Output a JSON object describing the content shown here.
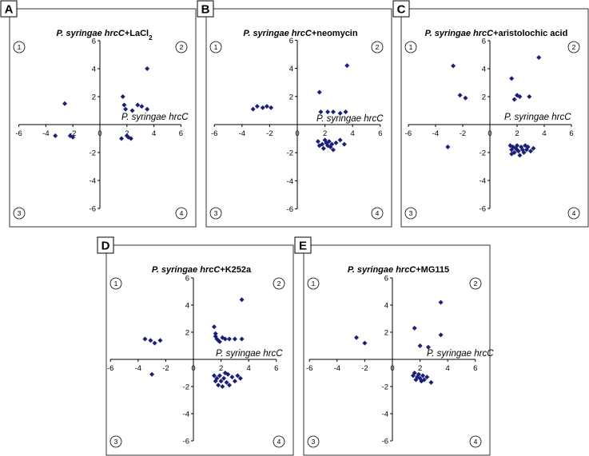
{
  "chart_data": [
    {
      "panel": "A",
      "type": "scatter",
      "title_parts": [
        [
          "P. syringae ",
          ""
        ],
        [
          "hrcC",
          ""
        ],
        [
          "+LaCl",
          ""
        ],
        [
          "2",
          "sub"
        ]
      ],
      "title_style": [
        true,
        true,
        false,
        false
      ],
      "inner_label": "P. syringae hrcC",
      "xlim": [
        -6,
        6
      ],
      "ylim": [
        -6,
        6
      ],
      "xticks": [
        -6,
        -4,
        -2,
        0,
        2,
        4,
        6
      ],
      "yticks": [
        -6,
        -4,
        -2,
        0,
        2,
        4,
        6
      ],
      "quadrants": [
        "1",
        "2",
        "3",
        "4"
      ],
      "points": [
        [
          -2.6,
          1.5
        ],
        [
          -3.3,
          -0.8
        ],
        [
          -2.2,
          -0.8
        ],
        [
          -2.0,
          -0.9
        ],
        [
          1.7,
          2.0
        ],
        [
          1.8,
          1.4
        ],
        [
          1.9,
          1.1
        ],
        [
          2.4,
          1.0
        ],
        [
          2.8,
          1.4
        ],
        [
          3.1,
          1.3
        ],
        [
          3.5,
          1.1
        ],
        [
          3.5,
          4.0
        ],
        [
          1.6,
          -1.0
        ],
        [
          2.0,
          -0.8
        ],
        [
          2.1,
          -0.9
        ],
        [
          2.3,
          -1.0
        ]
      ]
    },
    {
      "panel": "B",
      "type": "scatter",
      "title_parts": [
        [
          "P. syringae ",
          ""
        ],
        [
          "hrcC",
          ""
        ],
        [
          "+neomycin",
          ""
        ]
      ],
      "title_style": [
        true,
        true,
        false
      ],
      "inner_label": "P. syringae hrcC",
      "xlim": [
        -6,
        6
      ],
      "ylim": [
        -6,
        6
      ],
      "xticks": [
        -6,
        -4,
        -2,
        0,
        2,
        4,
        6
      ],
      "yticks": [
        -6,
        -4,
        -2,
        0,
        2,
        4,
        6
      ],
      "quadrants": [
        "1",
        "2",
        "3",
        "4"
      ],
      "points": [
        [
          -3.2,
          1.1
        ],
        [
          -2.9,
          1.3
        ],
        [
          -2.5,
          1.2
        ],
        [
          -2.2,
          1.3
        ],
        [
          -1.9,
          1.2
        ],
        [
          1.6,
          2.3
        ],
        [
          1.7,
          0.9
        ],
        [
          2.2,
          0.9
        ],
        [
          2.6,
          0.9
        ],
        [
          3.1,
          0.8
        ],
        [
          3.5,
          0.9
        ],
        [
          3.6,
          4.2
        ],
        [
          1.5,
          -1.2
        ],
        [
          1.6,
          -1.5
        ],
        [
          1.8,
          -1.4
        ],
        [
          2.0,
          -1.1
        ],
        [
          2.1,
          -1.3
        ],
        [
          2.2,
          -1.5
        ],
        [
          2.3,
          -1.2
        ],
        [
          2.4,
          -1.6
        ],
        [
          2.5,
          -1.4
        ],
        [
          2.6,
          -1.8
        ],
        [
          2.8,
          -1.3
        ],
        [
          3.1,
          -1.1
        ],
        [
          3.4,
          -1.4
        ],
        [
          1.9,
          -1.7
        ]
      ]
    },
    {
      "panel": "C",
      "type": "scatter",
      "title_parts": [
        [
          "P. syringae ",
          ""
        ],
        [
          "hrcC",
          ""
        ],
        [
          "+aristolochic acid",
          ""
        ]
      ],
      "title_style": [
        true,
        true,
        false
      ],
      "inner_label": "P. syringae hrcC",
      "xlim": [
        -6,
        6
      ],
      "ylim": [
        -6,
        6
      ],
      "xticks": [
        -6,
        -4,
        -2,
        0,
        2,
        4,
        6
      ],
      "yticks": [
        -6,
        -4,
        -2,
        0,
        2,
        4,
        6
      ],
      "quadrants": [
        "1",
        "2",
        "3",
        "4"
      ],
      "points": [
        [
          -2.7,
          4.2
        ],
        [
          -2.2,
          2.1
        ],
        [
          -1.8,
          1.9
        ],
        [
          -3.1,
          -1.6
        ],
        [
          1.6,
          3.3
        ],
        [
          1.8,
          1.8
        ],
        [
          2.0,
          2.1
        ],
        [
          2.2,
          2.0
        ],
        [
          2.9,
          2.0
        ],
        [
          3.6,
          4.8
        ],
        [
          1.5,
          -1.5
        ],
        [
          1.6,
          -1.8
        ],
        [
          1.7,
          -1.6
        ],
        [
          1.8,
          -2.0
        ],
        [
          1.9,
          -1.7
        ],
        [
          2.0,
          -1.5
        ],
        [
          2.1,
          -1.9
        ],
        [
          2.2,
          -2.2
        ],
        [
          2.3,
          -1.6
        ],
        [
          2.4,
          -1.8
        ],
        [
          2.5,
          -2.0
        ],
        [
          2.6,
          -1.5
        ],
        [
          2.7,
          -1.8
        ],
        [
          2.8,
          -1.6
        ],
        [
          3.0,
          -1.9
        ],
        [
          3.2,
          -1.7
        ],
        [
          1.6,
          -2.1
        ],
        [
          2.0,
          -1.8
        ]
      ]
    },
    {
      "panel": "D",
      "type": "scatter",
      "title_parts": [
        [
          "P. syringae ",
          ""
        ],
        [
          "hrcC",
          ""
        ],
        [
          "+K252a",
          ""
        ]
      ],
      "title_style": [
        true,
        true,
        false
      ],
      "inner_label": "P. syringae hrcC",
      "xlim": [
        -6,
        6
      ],
      "ylim": [
        -6,
        6
      ],
      "xticks": [
        -6,
        -4,
        -2,
        0,
        2,
        4,
        6
      ],
      "yticks": [
        -6,
        -4,
        -2,
        0,
        2,
        4,
        6
      ],
      "quadrants": [
        "1",
        "2",
        "3",
        "4"
      ],
      "points": [
        [
          -3.5,
          1.5
        ],
        [
          -3.1,
          1.4
        ],
        [
          -2.8,
          1.2
        ],
        [
          -2.4,
          1.4
        ],
        [
          -3.0,
          -1.1
        ],
        [
          1.5,
          2.4
        ],
        [
          1.6,
          1.9
        ],
        [
          1.7,
          1.5
        ],
        [
          1.9,
          1.3
        ],
        [
          2.1,
          1.6
        ],
        [
          2.3,
          1.5
        ],
        [
          2.6,
          1.5
        ],
        [
          3.0,
          1.5
        ],
        [
          3.5,
          1.5
        ],
        [
          3.5,
          4.4
        ],
        [
          1.6,
          1.7
        ],
        [
          1.8,
          1.4
        ],
        [
          1.5,
          -1.2
        ],
        [
          1.6,
          -1.6
        ],
        [
          1.7,
          -1.4
        ],
        [
          1.8,
          -1.9
        ],
        [
          1.9,
          -1.2
        ],
        [
          2.0,
          -1.6
        ],
        [
          2.1,
          -2.0
        ],
        [
          2.2,
          -1.4
        ],
        [
          2.4,
          -1.7
        ],
        [
          2.5,
          -1.1
        ],
        [
          2.6,
          -1.9
        ],
        [
          2.8,
          -1.3
        ],
        [
          3.0,
          -1.6
        ],
        [
          3.2,
          -1.2
        ],
        [
          3.4,
          -1.4
        ],
        [
          2.3,
          -1.0
        ]
      ]
    },
    {
      "panel": "E",
      "type": "scatter",
      "title_parts": [
        [
          "P. syringae ",
          ""
        ],
        [
          "hrcC",
          ""
        ],
        [
          "+MG115",
          ""
        ]
      ],
      "title_style": [
        true,
        true,
        false
      ],
      "inner_label": "P. syringae hrcC",
      "xlim": [
        -6,
        6
      ],
      "ylim": [
        -6,
        6
      ],
      "xticks": [
        -6,
        -4,
        -2,
        0,
        2,
        4,
        6
      ],
      "yticks": [
        -6,
        -4,
        -2,
        0,
        2,
        4,
        6
      ],
      "quadrants": [
        "1",
        "2",
        "3",
        "4"
      ],
      "points": [
        [
          -2.6,
          1.6
        ],
        [
          -2.0,
          1.2
        ],
        [
          1.6,
          2.3
        ],
        [
          2.0,
          1.0
        ],
        [
          2.6,
          0.9
        ],
        [
          3.5,
          1.8
        ],
        [
          3.5,
          4.2
        ],
        [
          1.5,
          -1.2
        ],
        [
          1.7,
          -1.5
        ],
        [
          1.8,
          -1.3
        ],
        [
          1.9,
          -1.1
        ],
        [
          2.0,
          -1.4
        ],
        [
          2.1,
          -1.6
        ],
        [
          2.2,
          -1.2
        ],
        [
          2.3,
          -1.5
        ],
        [
          2.5,
          -1.3
        ],
        [
          2.8,
          -1.7
        ],
        [
          1.6,
          -1.0
        ]
      ]
    }
  ]
}
